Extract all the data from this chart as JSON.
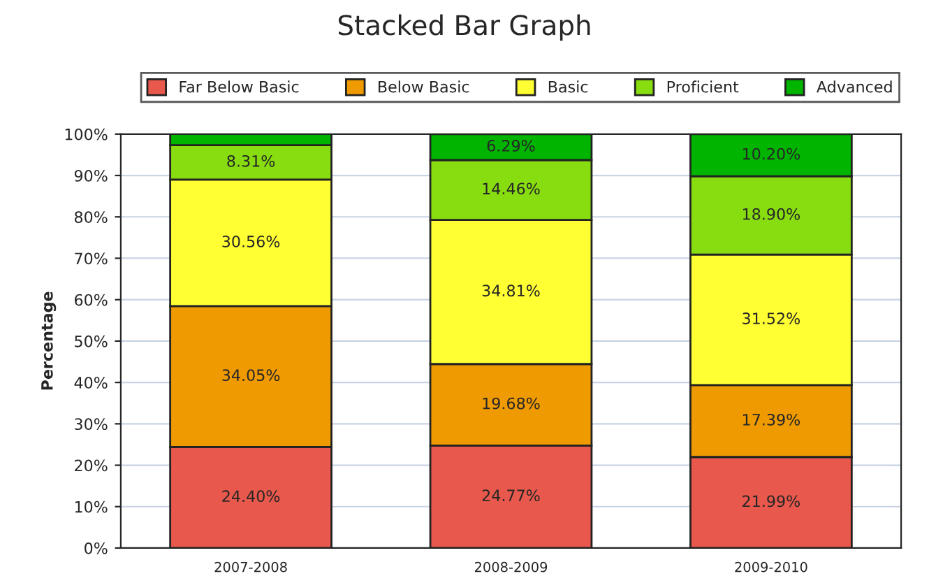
{
  "chart_data": {
    "type": "bar",
    "stacked": true,
    "title": "Stacked Bar Graph",
    "ylabel": "Percentage",
    "categories": [
      "2007-2008",
      "2008-2009",
      "2009-2010"
    ],
    "series": [
      {
        "name": "Far Below Basic",
        "color": "#e8584c",
        "values": [
          24.4,
          24.77,
          21.99
        ],
        "value_labels": [
          "24.40%",
          "24.77%",
          "21.99%"
        ]
      },
      {
        "name": "Below Basic",
        "color": "#ee9a00",
        "values": [
          34.05,
          19.68,
          17.39
        ],
        "value_labels": [
          "34.05%",
          "19.68%",
          "17.39%"
        ]
      },
      {
        "name": "Basic",
        "color": "#ffff33",
        "values": [
          30.56,
          34.81,
          31.52
        ],
        "value_labels": [
          "30.56%",
          "34.81%",
          "31.52%"
        ]
      },
      {
        "name": "Proficient",
        "color": "#88dd11",
        "values": [
          8.31,
          14.46,
          18.9
        ],
        "value_labels": [
          "8.31%",
          "14.46%",
          "18.90%"
        ]
      },
      {
        "name": "Advanced",
        "color": "#00b400",
        "values": [
          2.7,
          6.29,
          10.2
        ],
        "value_labels": [
          null,
          "6.29%",
          "10.20%"
        ]
      }
    ],
    "ylim": [
      0,
      100
    ],
    "yticks": [
      {
        "value": 0,
        "label": "0%"
      },
      {
        "value": 10,
        "label": "10%"
      },
      {
        "value": 20,
        "label": "20%"
      },
      {
        "value": 30,
        "label": "30%"
      },
      {
        "value": 40,
        "label": "40%"
      },
      {
        "value": 50,
        "label": "50%"
      },
      {
        "value": 60,
        "label": "60%"
      },
      {
        "value": 70,
        "label": "70%"
      },
      {
        "value": 80,
        "label": "80%"
      },
      {
        "value": 90,
        "label": "90%"
      },
      {
        "value": 100,
        "label": "100%"
      }
    ],
    "grid": "y",
    "legend": "top"
  }
}
